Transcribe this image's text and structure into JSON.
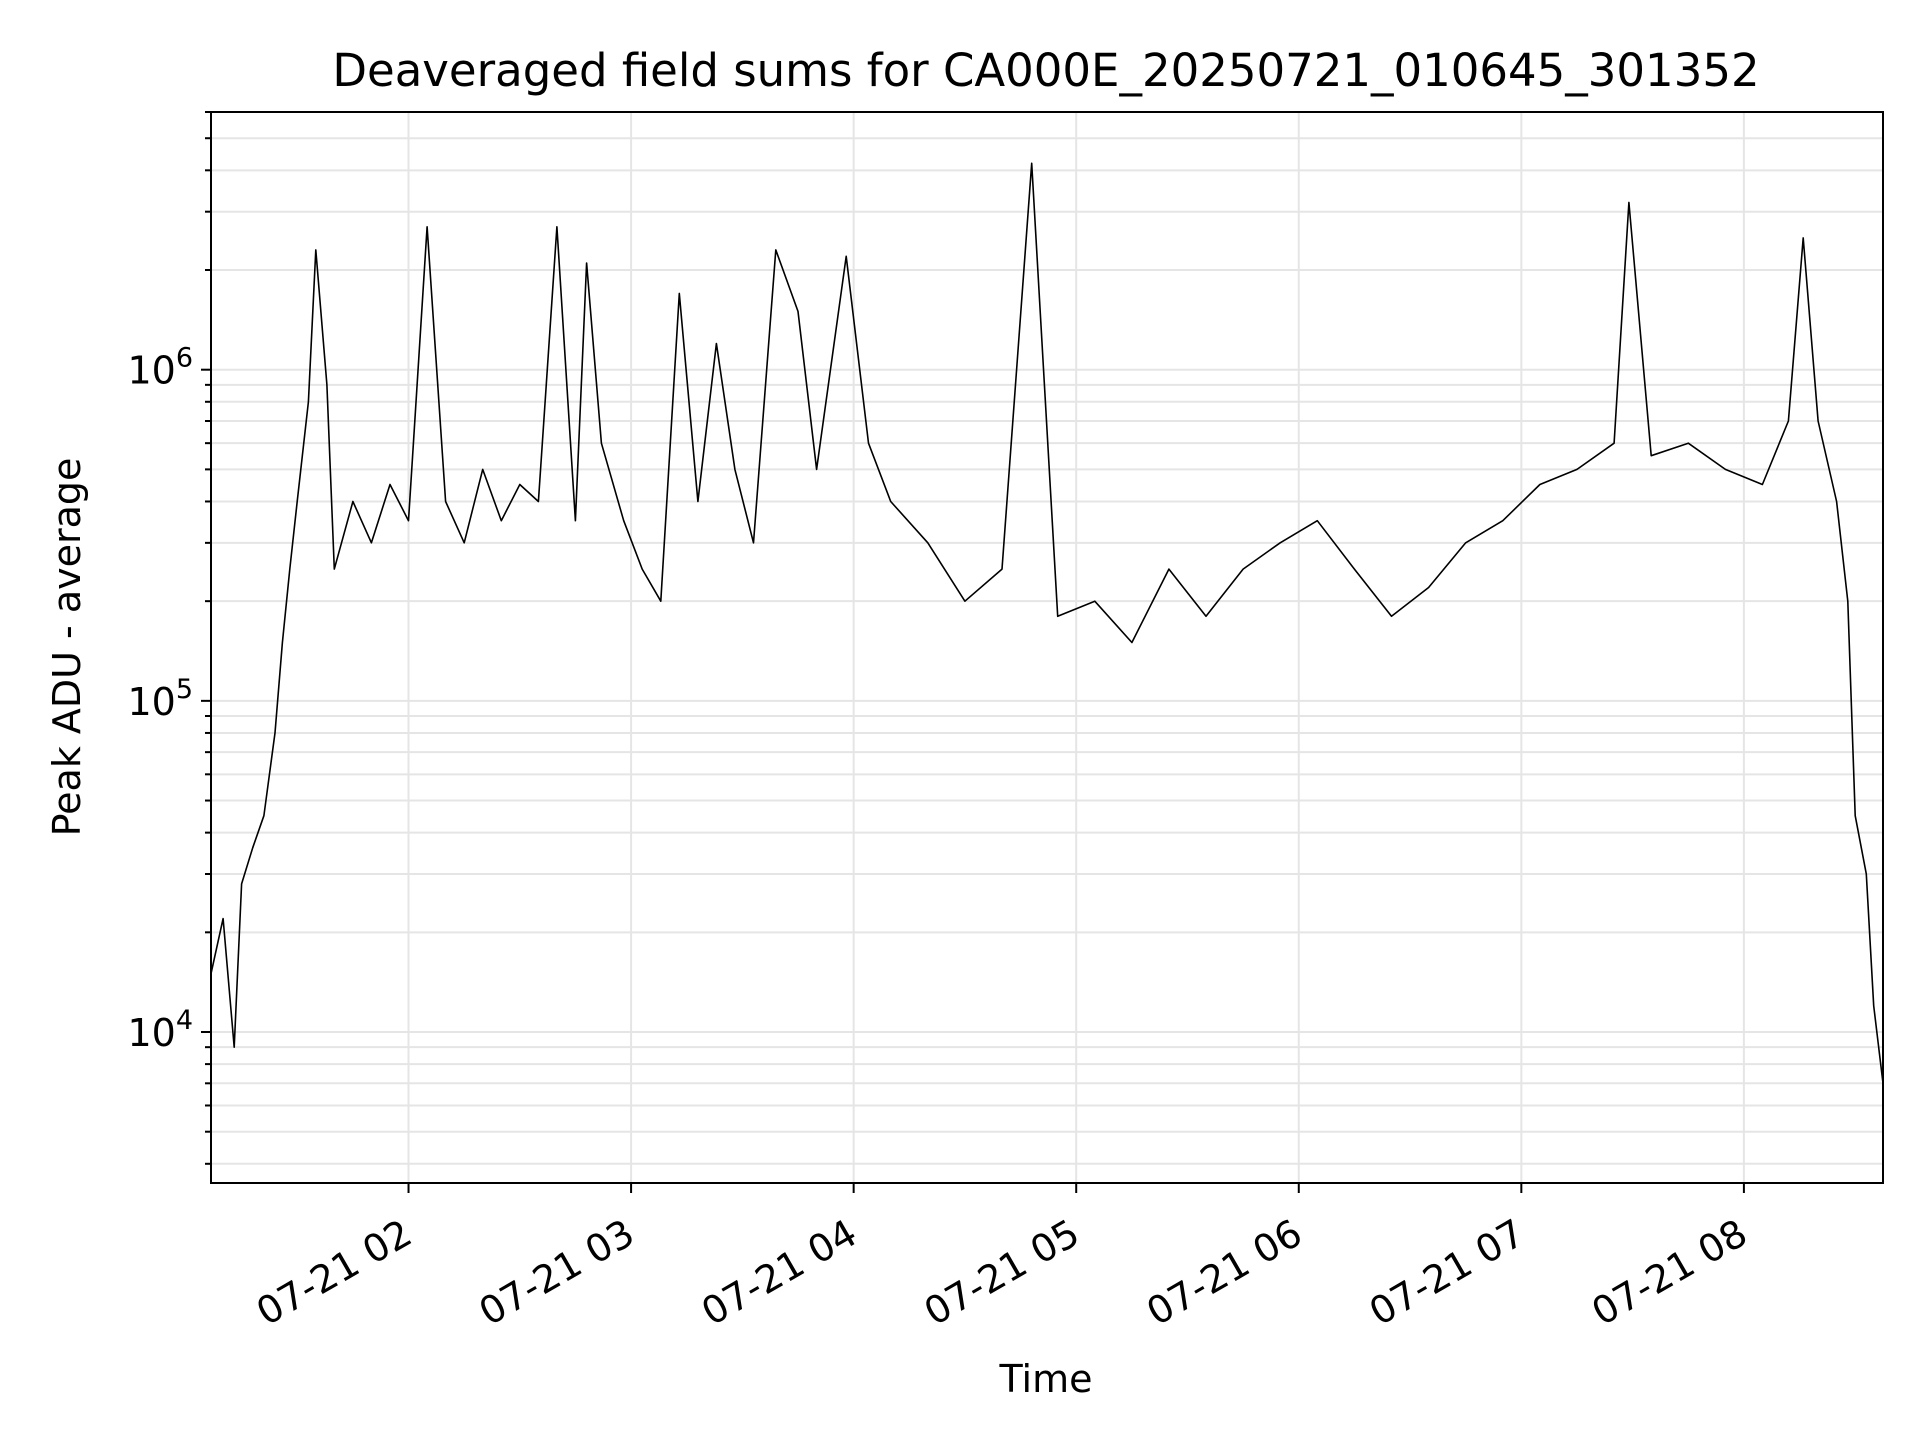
{
  "chart_data": {
    "type": "line",
    "title": "Deaveraged field sums for CA000E_20250721_010645_301352",
    "xlabel": "Time",
    "ylabel": "Peak ADU - average",
    "x_axis": {
      "type": "datetime",
      "range": [
        "2025-07-21T01:06:45",
        "2025-07-21T08:37:30"
      ],
      "tick_values": [
        "2025-07-21T02:00",
        "2025-07-21T03:00",
        "2025-07-21T04:00",
        "2025-07-21T05:00",
        "2025-07-21T06:00",
        "2025-07-21T07:00",
        "2025-07-21T08:00"
      ],
      "tick_labels": [
        "07-21 02",
        "07-21 03",
        "07-21 04",
        "07-21 05",
        "07-21 06",
        "07-21 07",
        "07-21 08"
      ]
    },
    "y_axis": {
      "scale": "log",
      "range": [
        3500,
        6000000
      ],
      "tick_values": [
        10000,
        100000,
        1000000
      ],
      "tick_labels": [
        {
          "base": "10",
          "exp": "4"
        },
        {
          "base": "10",
          "exp": "5"
        },
        {
          "base": "10",
          "exp": "6"
        }
      ]
    },
    "grid": true,
    "series": [
      {
        "color": "#000000",
        "points": [
          [
            "2025-07-21T01:06:45",
            15000
          ],
          [
            "2025-07-21T01:10",
            22000
          ],
          [
            "2025-07-21T01:13",
            9000
          ],
          [
            "2025-07-21T01:15",
            28000
          ],
          [
            "2025-07-21T01:18",
            36000
          ],
          [
            "2025-07-21T01:21",
            45000
          ],
          [
            "2025-07-21T01:24",
            80000
          ],
          [
            "2025-07-21T01:26",
            150000
          ],
          [
            "2025-07-21T01:28",
            250000
          ],
          [
            "2025-07-21T01:30",
            400000
          ],
          [
            "2025-07-21T01:33",
            800000
          ],
          [
            "2025-07-21T01:35",
            2300000
          ],
          [
            "2025-07-21T01:38",
            900000
          ],
          [
            "2025-07-21T01:40",
            250000
          ],
          [
            "2025-07-21T01:45",
            400000
          ],
          [
            "2025-07-21T01:50",
            300000
          ],
          [
            "2025-07-21T01:55",
            450000
          ],
          [
            "2025-07-21T02:00",
            350000
          ],
          [
            "2025-07-21T02:05",
            2700000
          ],
          [
            "2025-07-21T02:10",
            400000
          ],
          [
            "2025-07-21T02:15",
            300000
          ],
          [
            "2025-07-21T02:20",
            500000
          ],
          [
            "2025-07-21T02:25",
            350000
          ],
          [
            "2025-07-21T02:30",
            450000
          ],
          [
            "2025-07-21T02:35",
            400000
          ],
          [
            "2025-07-21T02:40",
            2700000
          ],
          [
            "2025-07-21T02:45",
            350000
          ],
          [
            "2025-07-21T02:48",
            2100000
          ],
          [
            "2025-07-21T02:52",
            600000
          ],
          [
            "2025-07-21T02:58",
            350000
          ],
          [
            "2025-07-21T03:03",
            250000
          ],
          [
            "2025-07-21T03:08",
            200000
          ],
          [
            "2025-07-21T03:13",
            1700000
          ],
          [
            "2025-07-21T03:18",
            400000
          ],
          [
            "2025-07-21T03:23",
            1200000
          ],
          [
            "2025-07-21T03:28",
            500000
          ],
          [
            "2025-07-21T03:33",
            300000
          ],
          [
            "2025-07-21T03:39",
            2300000
          ],
          [
            "2025-07-21T03:45",
            1500000
          ],
          [
            "2025-07-21T03:50",
            500000
          ],
          [
            "2025-07-21T03:58",
            2200000
          ],
          [
            "2025-07-21T04:04",
            600000
          ],
          [
            "2025-07-21T04:10",
            400000
          ],
          [
            "2025-07-21T04:20",
            300000
          ],
          [
            "2025-07-21T04:30",
            200000
          ],
          [
            "2025-07-21T04:40",
            250000
          ],
          [
            "2025-07-21T04:48",
            4200000
          ],
          [
            "2025-07-21T04:55",
            180000
          ],
          [
            "2025-07-21T05:05",
            200000
          ],
          [
            "2025-07-21T05:15",
            150000
          ],
          [
            "2025-07-21T05:25",
            250000
          ],
          [
            "2025-07-21T05:35",
            180000
          ],
          [
            "2025-07-21T05:45",
            250000
          ],
          [
            "2025-07-21T05:55",
            300000
          ],
          [
            "2025-07-21T06:05",
            350000
          ],
          [
            "2025-07-21T06:15",
            250000
          ],
          [
            "2025-07-21T06:25",
            180000
          ],
          [
            "2025-07-21T06:35",
            220000
          ],
          [
            "2025-07-21T06:45",
            300000
          ],
          [
            "2025-07-21T06:55",
            350000
          ],
          [
            "2025-07-21T07:05",
            450000
          ],
          [
            "2025-07-21T07:15",
            500000
          ],
          [
            "2025-07-21T07:25",
            600000
          ],
          [
            "2025-07-21T07:29",
            3200000
          ],
          [
            "2025-07-21T07:35",
            550000
          ],
          [
            "2025-07-21T07:45",
            600000
          ],
          [
            "2025-07-21T07:55",
            500000
          ],
          [
            "2025-07-21T08:05",
            450000
          ],
          [
            "2025-07-21T08:12",
            700000
          ],
          [
            "2025-07-21T08:16",
            2500000
          ],
          [
            "2025-07-21T08:20",
            700000
          ],
          [
            "2025-07-21T08:25",
            400000
          ],
          [
            "2025-07-21T08:28",
            200000
          ],
          [
            "2025-07-21T08:30",
            45000
          ],
          [
            "2025-07-21T08:33",
            30000
          ],
          [
            "2025-07-21T08:35",
            12000
          ],
          [
            "2025-07-21T08:37:30",
            7000
          ]
        ]
      }
    ]
  }
}
